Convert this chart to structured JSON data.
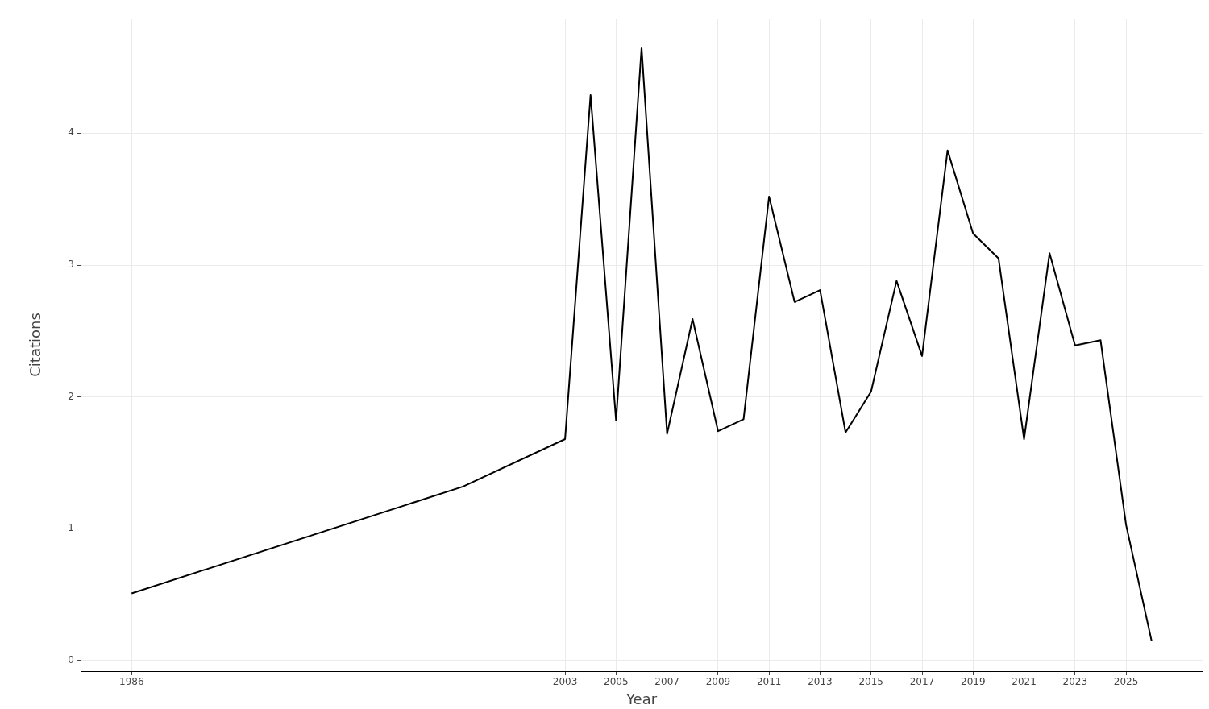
{
  "chart_data": {
    "type": "line",
    "xlabel": "Year",
    "ylabel": "Citations",
    "x": [
      1986,
      1999,
      2003,
      2004,
      2005,
      2006,
      2007,
      2008,
      2009,
      2010,
      2011,
      2012,
      2013,
      2014,
      2015,
      2016,
      2017,
      2018,
      2019,
      2020,
      2021,
      2022,
      2023,
      2024,
      2025,
      2026
    ],
    "series": [
      {
        "color": "#000000",
        "values": [
          0.51,
          1.32,
          1.68,
          4.29,
          1.82,
          4.65,
          1.72,
          2.59,
          1.74,
          1.83,
          3.52,
          2.72,
          2.81,
          1.73,
          2.04,
          2.88,
          2.31,
          3.87,
          3.24,
          3.05,
          1.68,
          3.09,
          2.39,
          2.43,
          1.03,
          0.15
        ]
      }
    ],
    "xlim": [
      1984,
      2028
    ],
    "xticks": [
      1986,
      2003,
      2005,
      2007,
      2009,
      2011,
      2013,
      2015,
      2017,
      2019,
      2021,
      2023,
      2025
    ],
    "ylim": [
      -0.08,
      4.87
    ],
    "yticks": [
      0,
      1,
      2,
      3,
      4
    ],
    "grid": true
  }
}
